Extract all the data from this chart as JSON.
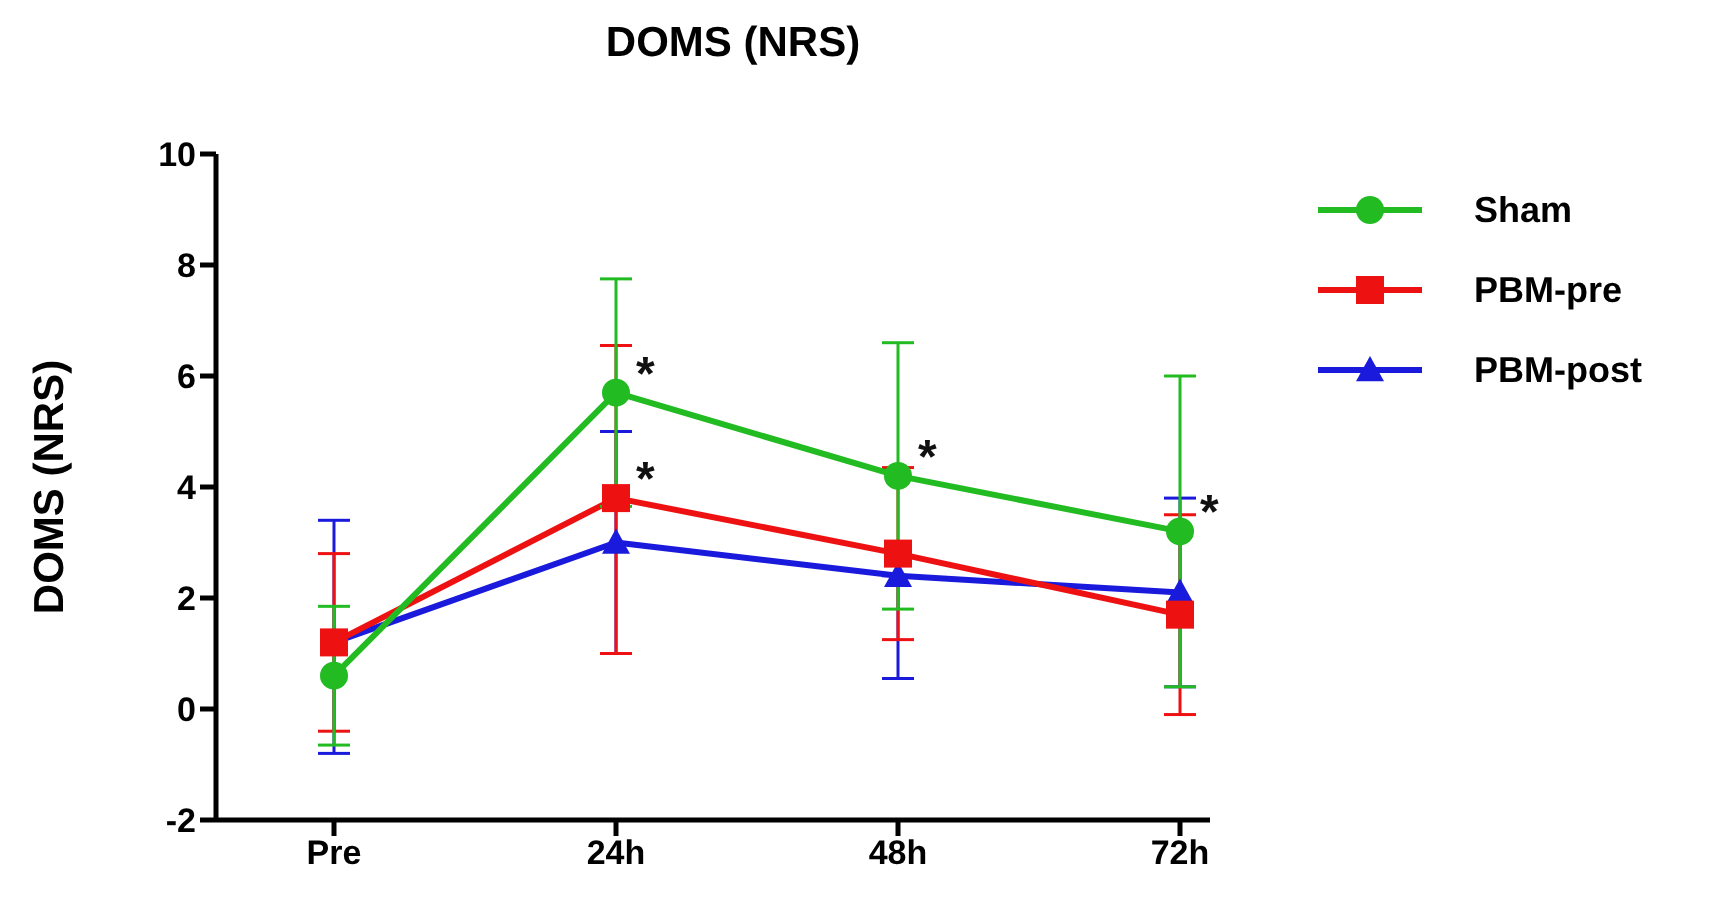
{
  "chart_data": {
    "type": "line",
    "title": "DOMS (NRS)",
    "ylabel": "DOMS (NRS)",
    "categories": [
      "Pre",
      "24h",
      "48h",
      "72h"
    ],
    "series": [
      {
        "name": "Sham",
        "color": "#22bb22",
        "marker": "circle",
        "values": [
          0.6,
          5.7,
          4.2,
          3.2
        ],
        "errors": [
          [
            -0.65,
            1.85
          ],
          [
            3.65,
            7.75
          ],
          [
            1.8,
            6.6
          ],
          [
            0.4,
            6.0
          ]
        ]
      },
      {
        "name": "PBM-pre",
        "color": "#ee1111",
        "marker": "square",
        "values": [
          1.2,
          3.8,
          2.8,
          1.7
        ],
        "errors": [
          [
            -0.4,
            2.8
          ],
          [
            1.0,
            6.55
          ],
          [
            1.25,
            4.35
          ],
          [
            -0.1,
            3.5
          ]
        ]
      },
      {
        "name": "PBM-post",
        "color": "#1a1add",
        "marker": "triangle",
        "values": [
          1.2,
          3.0,
          2.4,
          2.1
        ],
        "errors": [
          [
            -0.8,
            3.4
          ],
          [
            1.0,
            5.0
          ],
          [
            0.55,
            2.4
          ],
          [
            0.4,
            3.8
          ]
        ]
      }
    ],
    "ylim": [
      -2,
      10
    ],
    "yticks": [
      -2,
      0,
      2,
      4,
      6,
      8,
      10
    ],
    "grid": false,
    "legend": "right",
    "annotations": [
      {
        "text": "*",
        "x": "24h",
        "y": 5.7
      },
      {
        "text": "*",
        "x": "24h",
        "y": 3.8
      },
      {
        "text": "*",
        "x": "48h",
        "y": 4.2
      },
      {
        "text": "*",
        "x": "72h",
        "y": 3.2
      }
    ]
  }
}
